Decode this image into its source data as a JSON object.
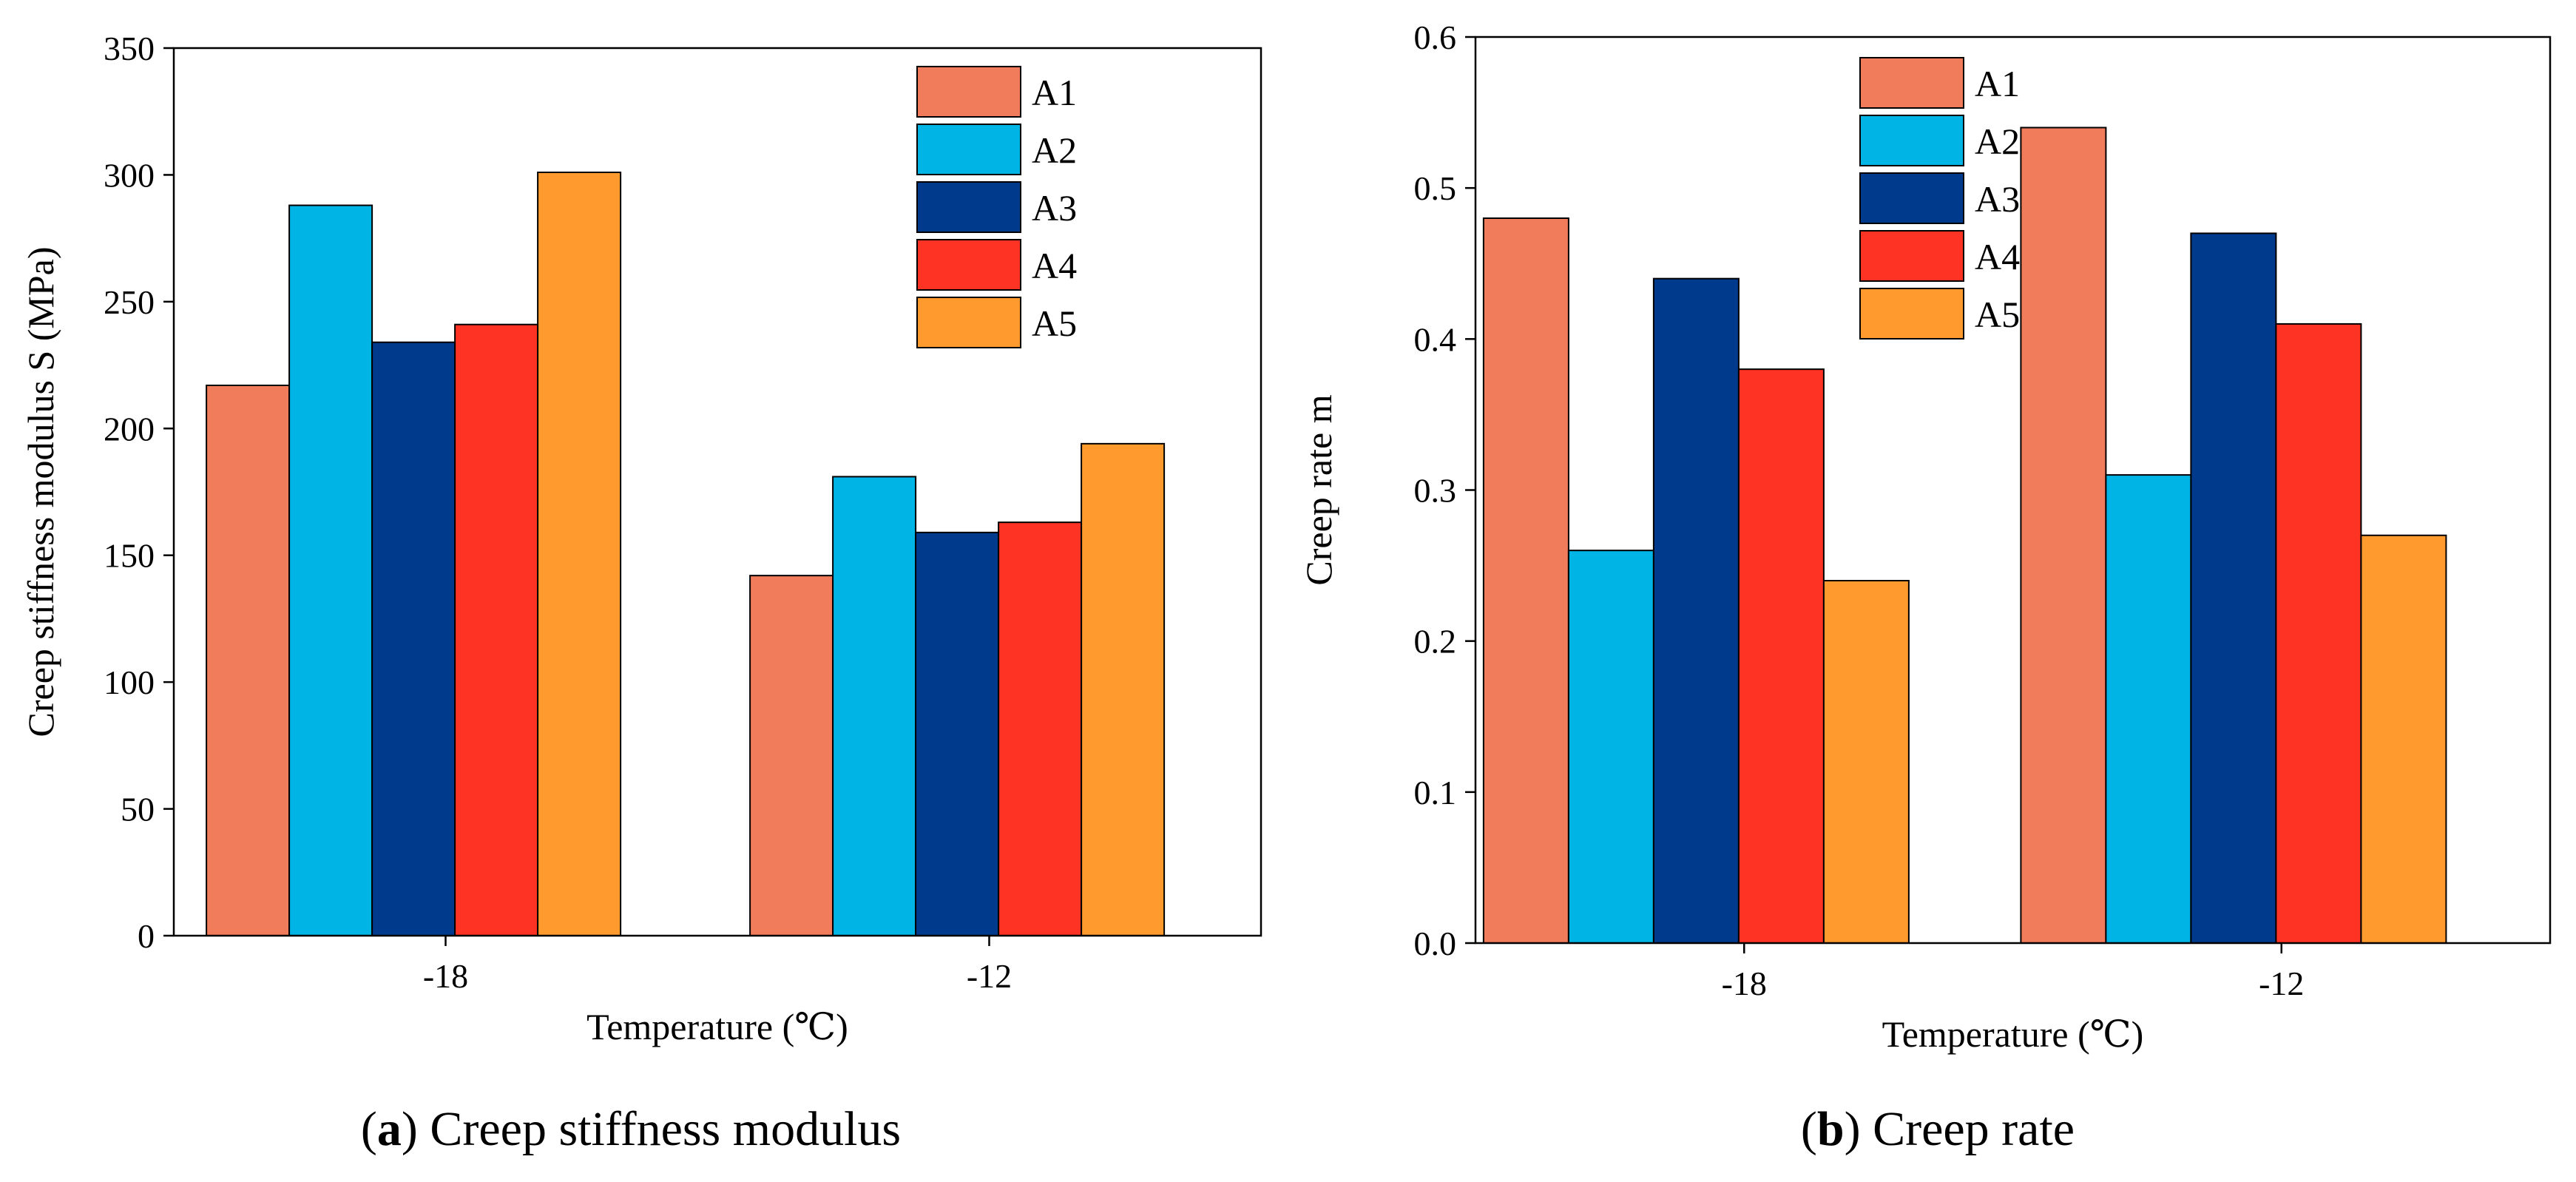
{
  "chart_data": [
    {
      "type": "bar",
      "caption_letter": "a",
      "caption_text": "Creep stiffness modulus",
      "categories": [
        "-18",
        "-12"
      ],
      "series": [
        {
          "name": "A1",
          "values": [
            217,
            142
          ]
        },
        {
          "name": "A2",
          "values": [
            288,
            181
          ]
        },
        {
          "name": "A3",
          "values": [
            234,
            159
          ]
        },
        {
          "name": "A4",
          "values": [
            241,
            163
          ]
        },
        {
          "name": "A5",
          "values": [
            301,
            194
          ]
        }
      ],
      "xlabel": "Temperature (℃)",
      "ylabel": "Creep stiffness modulus S (MPa)",
      "ylim": [
        0,
        350
      ],
      "yticks": [
        "0",
        "50",
        "100",
        "150",
        "200",
        "250",
        "300",
        "350"
      ],
      "legend_position": "top-right",
      "grid": false
    },
    {
      "type": "bar",
      "caption_letter": "b",
      "caption_text": "Creep rate",
      "categories": [
        "-18",
        "-12"
      ],
      "series": [
        {
          "name": "A1",
          "values": [
            0.48,
            0.54
          ]
        },
        {
          "name": "A2",
          "values": [
            0.26,
            0.31
          ]
        },
        {
          "name": "A3",
          "values": [
            0.44,
            0.47
          ]
        },
        {
          "name": "A4",
          "values": [
            0.38,
            0.41
          ]
        },
        {
          "name": "A5",
          "values": [
            0.24,
            0.27
          ]
        }
      ],
      "xlabel": "Temperature (℃)",
      "ylabel": "Creep rate m",
      "ylim": [
        0,
        0.6
      ],
      "yticks": [
        "0.0",
        "0.1",
        "0.2",
        "0.3",
        "0.4",
        "0.5",
        "0.6"
      ],
      "legend_position": "top-center",
      "grid": false
    }
  ],
  "colors": {
    "A1": "#f07c5c",
    "A2": "#00b4e6",
    "A3": "#003a8c",
    "A4": "#fe3323",
    "A5": "#fe9a2e"
  }
}
